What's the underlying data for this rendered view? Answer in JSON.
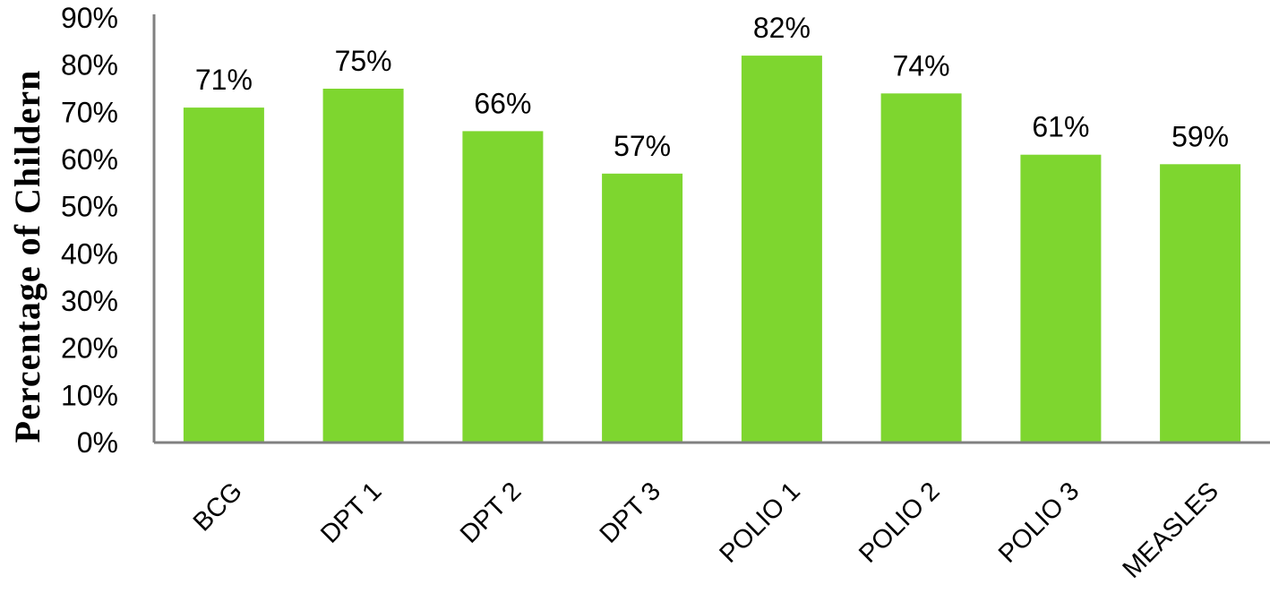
{
  "chart_data": {
    "type": "bar",
    "title": "",
    "xlabel": "",
    "ylabel": "Percentage  of  Childern",
    "categories": [
      "BCG",
      "DPT 1",
      "DPT 2",
      "DPT 3",
      "POLIO 1",
      "POLIO 2",
      "POLIO 3",
      "MEASLES"
    ],
    "values": [
      71,
      75,
      66,
      57,
      82,
      74,
      61,
      59
    ],
    "data_labels": [
      "71%",
      "75%",
      "66%",
      "57%",
      "82%",
      "74%",
      "61%",
      "59%"
    ],
    "y_ticks": [
      "0%",
      "10%",
      "20%",
      "30%",
      "40%",
      "50%",
      "60%",
      "70%",
      "80%",
      "90%"
    ],
    "ylim": [
      0,
      90
    ],
    "grid": false,
    "legend": "none",
    "bar_color": "#7ed62f",
    "axis_color": "#808080"
  }
}
